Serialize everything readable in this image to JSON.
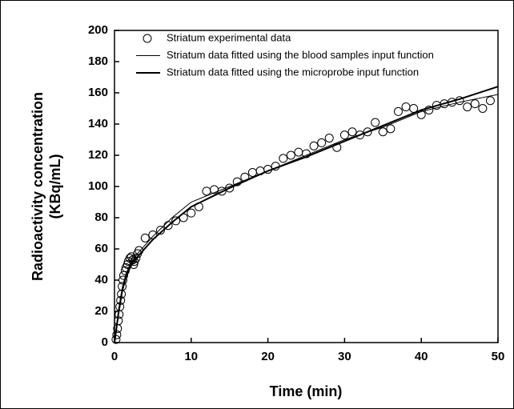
{
  "chart_data": {
    "type": "scatter",
    "xlabel": "Time (min)",
    "ylabel": [
      "Radioactivity concentration",
      "(KBq/mL)"
    ],
    "xlim": [
      0,
      50
    ],
    "xticks": [
      0,
      10,
      20,
      30,
      40,
      50
    ],
    "ylim": [
      0,
      200
    ],
    "yticks": [
      0,
      20,
      40,
      60,
      80,
      100,
      120,
      140,
      160,
      180,
      200
    ],
    "legend": "upper-left",
    "series": [
      {
        "name": "Striatum experimental data",
        "style": "markers",
        "color": "#000000",
        "x": [
          0.2,
          0.3,
          0.4,
          0.5,
          0.6,
          0.7,
          0.8,
          0.9,
          1.0,
          1.1,
          1.2,
          1.4,
          1.5,
          1.7,
          1.8,
          2.0,
          2.2,
          2.4,
          2.5,
          2.6,
          2.8,
          3.0,
          3.2,
          4,
          5,
          6,
          7,
          8,
          9,
          10,
          11,
          12,
          13,
          14,
          15,
          16,
          17,
          18,
          19,
          20,
          21,
          22,
          23,
          24,
          25,
          26,
          27,
          28,
          29,
          30,
          31,
          32,
          33,
          34,
          35,
          36,
          37,
          38,
          39,
          40,
          41,
          42,
          43,
          44,
          45,
          46,
          47,
          48,
          49
        ],
        "values": [
          2,
          5,
          9,
          14,
          18,
          23,
          27,
          31,
          36,
          40,
          43,
          46,
          48,
          50,
          52,
          54,
          55,
          53,
          50,
          52,
          54,
          57,
          59,
          67,
          69,
          72,
          75,
          78,
          80,
          83,
          87,
          97,
          98,
          97,
          99,
          103,
          106,
          109,
          110,
          111,
          113,
          118,
          120,
          122,
          121,
          126,
          128,
          131,
          125,
          133,
          135,
          133,
          135,
          141,
          135,
          137,
          148,
          151,
          150,
          146,
          149,
          152,
          153,
          154,
          155,
          151,
          153,
          150,
          155
        ]
      },
      {
        "name": "Striatum data fitted using the blood samples input function",
        "style": "line",
        "width": 1,
        "color": "#000000",
        "x": [
          0,
          0.5,
          1,
          1.5,
          2,
          3,
          5,
          7.5,
          10,
          15,
          20,
          25,
          30,
          35,
          40,
          45,
          50
        ],
        "values": [
          0,
          20,
          35,
          44,
          50,
          57,
          68,
          80,
          90,
          100,
          110,
          120,
          130,
          138,
          148,
          154,
          159
        ]
      },
      {
        "name": "Striatum data fitted using the microprobe input function",
        "style": "line",
        "width": 2,
        "color": "#000000",
        "x": [
          0,
          0.5,
          1,
          1.5,
          2,
          3,
          5,
          7.5,
          10,
          15,
          20,
          25,
          30,
          35,
          40,
          45,
          50
        ],
        "values": [
          0,
          18,
          33,
          42,
          48,
          55,
          66,
          77,
          87,
          99,
          110,
          119,
          129,
          139,
          149,
          156,
          164
        ]
      }
    ]
  }
}
